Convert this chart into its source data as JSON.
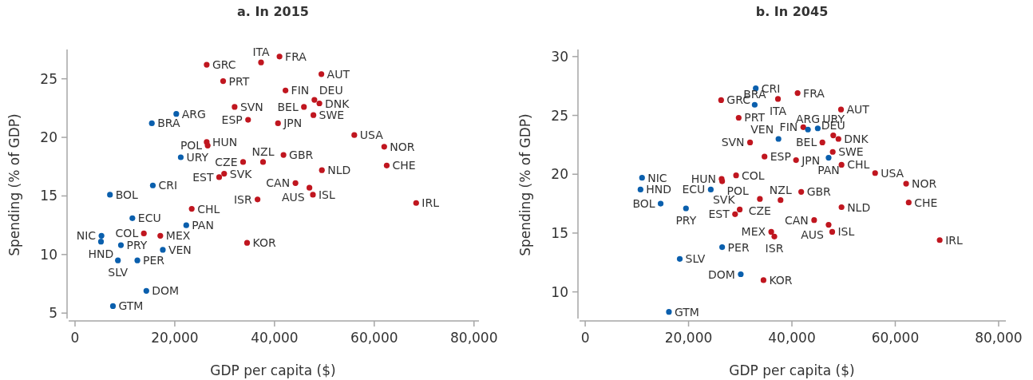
{
  "chart_data": [
    {
      "type": "scatter",
      "title": "a. In 2015",
      "xlabel": "GDP per capita ($)",
      "ylabel": "Spending (% of GDP)",
      "xlim": [
        -1600,
        81000
      ],
      "ylim": [
        4.4,
        27.5
      ],
      "xticks": [
        0,
        {
          "value": 20000,
          "label": "20,000"
        },
        {
          "value": 40000,
          "label": "40,000"
        },
        {
          "value": 60000,
          "label": "60,000"
        },
        {
          "value": 80000,
          "label": "80,000"
        }
      ],
      "yticks": [
        5,
        10,
        15,
        20,
        25
      ],
      "grid": false,
      "marker": "circle",
      "series": [
        {
          "color": "#c0161f",
          "x": [
            26400,
            29700,
            37300,
            41000,
            42200,
            32000,
            34700,
            40700,
            45900,
            48000,
            49000,
            47800,
            49400,
            56000,
            62000,
            62500,
            68400,
            49500,
            44200,
            47000,
            47700,
            36600,
            34500,
            41800,
            37700,
            33700,
            26400,
            26600,
            29900,
            28900,
            23400,
            17100,
            13800
          ],
          "values": [
            26.2,
            24.8,
            26.4,
            26.9,
            24.0,
            22.6,
            21.5,
            21.2,
            22.6,
            23.2,
            22.9,
            21.9,
            25.4,
            20.2,
            19.2,
            17.6,
            14.4,
            17.2,
            16.1,
            15.7,
            15.1,
            14.7,
            11.0,
            18.5,
            17.9,
            17.9,
            19.6,
            19.3,
            16.9,
            16.6,
            13.9,
            11.6,
            11.8
          ]
        },
        {
          "color": "#0a5fad",
          "x": [
            20300,
            15400,
            21200,
            15600,
            7000,
            11500,
            22300,
            5300,
            5200,
            9200,
            17600,
            8600,
            12500,
            14300,
            7600
          ],
          "values": [
            22.0,
            21.2,
            18.3,
            15.9,
            15.1,
            13.1,
            12.5,
            11.6,
            11.1,
            10.8,
            10.4,
            9.5,
            9.5,
            6.9,
            5.6
          ]
        }
      ],
      "annotations": [
        {
          "text": "GRC",
          "x": 26400,
          "y": 26.2
        },
        {
          "text": "PRT",
          "x": 29700,
          "y": 24.8
        },
        {
          "text": "ITA",
          "x": 37300,
          "y": 26.4
        },
        {
          "text": "FRA",
          "x": 41000,
          "y": 26.9
        },
        {
          "text": "FIN",
          "x": 42200,
          "y": 24.0
        },
        {
          "text": "SVN",
          "x": 32000,
          "y": 22.6
        },
        {
          "text": "ESP",
          "x": 34700,
          "y": 21.5
        },
        {
          "text": "JPN",
          "x": 40700,
          "y": 21.2
        },
        {
          "text": "BEL",
          "x": 45900,
          "y": 22.6
        },
        {
          "text": "DEU",
          "x": 48000,
          "y": 23.2
        },
        {
          "text": "DNK",
          "x": 49000,
          "y": 22.9
        },
        {
          "text": "SWE",
          "x": 47800,
          "y": 21.9
        },
        {
          "text": "AUT",
          "x": 49400,
          "y": 25.4
        },
        {
          "text": "USA",
          "x": 56000,
          "y": 20.2
        },
        {
          "text": "NOR",
          "x": 62000,
          "y": 19.2
        },
        {
          "text": "CHE",
          "x": 62500,
          "y": 17.6
        },
        {
          "text": "IRL",
          "x": 68400,
          "y": 14.4
        },
        {
          "text": "NLD",
          "x": 49500,
          "y": 17.2
        },
        {
          "text": "CAN",
          "x": 44200,
          "y": 16.1
        },
        {
          "text": "AUS",
          "x": 47000,
          "y": 15.7
        },
        {
          "text": "ISL",
          "x": 47700,
          "y": 15.1
        },
        {
          "text": "ISR",
          "x": 36600,
          "y": 14.7
        },
        {
          "text": "KOR",
          "x": 34500,
          "y": 11.0
        },
        {
          "text": "GBR",
          "x": 41800,
          "y": 18.5
        },
        {
          "text": "NZL",
          "x": 37700,
          "y": 17.9
        },
        {
          "text": "CZE",
          "x": 33700,
          "y": 17.9
        },
        {
          "text": "HUN",
          "x": 26400,
          "y": 19.6
        },
        {
          "text": "POL",
          "x": 26600,
          "y": 19.3
        },
        {
          "text": "SVK",
          "x": 29900,
          "y": 16.9
        },
        {
          "text": "EST",
          "x": 28900,
          "y": 16.6
        },
        {
          "text": "CHL",
          "x": 23400,
          "y": 13.9
        },
        {
          "text": "MEX",
          "x": 17100,
          "y": 11.6
        },
        {
          "text": "COL",
          "x": 13800,
          "y": 11.8
        },
        {
          "text": "ARG",
          "x": 20300,
          "y": 22.0
        },
        {
          "text": "BRA",
          "x": 15400,
          "y": 21.2
        },
        {
          "text": "URY",
          "x": 21200,
          "y": 18.3
        },
        {
          "text": "CRI",
          "x": 15600,
          "y": 15.9
        },
        {
          "text": "BOL",
          "x": 7000,
          "y": 15.1
        },
        {
          "text": "ECU",
          "x": 11500,
          "y": 13.1
        },
        {
          "text": "PAN",
          "x": 22300,
          "y": 12.5
        },
        {
          "text": "NIC",
          "x": 5300,
          "y": 11.6
        },
        {
          "text": "HND",
          "x": 5200,
          "y": 11.1
        },
        {
          "text": "PRY",
          "x": 9200,
          "y": 10.8
        },
        {
          "text": "VEN",
          "x": 17600,
          "y": 10.4
        },
        {
          "text": "SLV",
          "x": 8600,
          "y": 9.5
        },
        {
          "text": "PER",
          "x": 12500,
          "y": 9.5
        },
        {
          "text": "DOM",
          "x": 14300,
          "y": 6.9
        },
        {
          "text": "GTM",
          "x": 7600,
          "y": 5.6
        }
      ]
    },
    {
      "type": "scatter",
      "title": "b. In 2045",
      "xlabel": "GDP per capita ($)",
      "ylabel": "Spending (% of GDP)",
      "xlim": [
        -1400,
        81400
      ],
      "ylim": [
        7.6,
        30.6
      ],
      "xticks": [
        0,
        {
          "value": 20000,
          "label": "20,000"
        },
        {
          "value": 40000,
          "label": "40,000"
        },
        {
          "value": 60000,
          "label": "60,000"
        },
        {
          "value": 80000,
          "label": "80,000"
        }
      ],
      "yticks": [
        10,
        15,
        20,
        25,
        30
      ],
      "grid": false,
      "marker": "circle",
      "series": [
        {
          "color": "#c0161f",
          "x": [
            26300,
            37300,
            41100,
            29700,
            42200,
            49500,
            48000,
            49000,
            45900,
            47900,
            49600,
            56100,
            62100,
            62600,
            68600,
            49600,
            44300,
            47100,
            47800,
            41800,
            37800,
            36000,
            36600,
            34500,
            26400,
            26500,
            29200,
            33800,
            29900,
            29000,
            31900,
            34700,
            40800
          ],
          "values": [
            26.3,
            26.4,
            26.9,
            24.8,
            24.0,
            25.5,
            23.3,
            23.0,
            22.7,
            21.9,
            20.8,
            20.1,
            19.2,
            17.6,
            14.4,
            17.2,
            16.1,
            15.7,
            15.1,
            18.5,
            17.8,
            15.1,
            14.7,
            11.0,
            19.6,
            19.4,
            19.9,
            17.9,
            17.0,
            16.6,
            22.7,
            21.5,
            21.2
          ]
        },
        {
          "color": "#0a5fad",
          "x": [
            33000,
            32800,
            37400,
            43100,
            45000,
            47100,
            30100,
            26500,
            18300,
            16200,
            11000,
            10700,
            14600,
            19500,
            24300
          ],
          "values": [
            27.3,
            25.9,
            23.0,
            23.8,
            23.9,
            21.4,
            11.5,
            13.8,
            12.8,
            8.3,
            19.7,
            18.7,
            17.5,
            17.1,
            18.7
          ]
        }
      ],
      "annotations": [
        {
          "text": "GRC",
          "x": 26300,
          "y": 26.3
        },
        {
          "text": "ITA",
          "x": 37300,
          "y": 26.4
        },
        {
          "text": "FRA",
          "x": 41100,
          "y": 26.9
        },
        {
          "text": "PRT",
          "x": 29700,
          "y": 24.8
        },
        {
          "text": "FIN",
          "x": 42200,
          "y": 24.0
        },
        {
          "text": "AUT",
          "x": 49500,
          "y": 25.5
        },
        {
          "text": "DEU",
          "x": 48000,
          "y": 23.3
        },
        {
          "text": "DNK",
          "x": 49000,
          "y": 23.0
        },
        {
          "text": "BEL",
          "x": 45900,
          "y": 22.7
        },
        {
          "text": "SWE",
          "x": 47900,
          "y": 21.9
        },
        {
          "text": "CHL",
          "x": 49600,
          "y": 20.8
        },
        {
          "text": "USA",
          "x": 56100,
          "y": 20.1
        },
        {
          "text": "NOR",
          "x": 62100,
          "y": 19.2
        },
        {
          "text": "CHE",
          "x": 62600,
          "y": 17.6
        },
        {
          "text": "IRL",
          "x": 68600,
          "y": 14.4
        },
        {
          "text": "NLD",
          "x": 49600,
          "y": 17.2
        },
        {
          "text": "CAN",
          "x": 44300,
          "y": 16.1
        },
        {
          "text": "AUS",
          "x": 47100,
          "y": 15.7
        },
        {
          "text": "ISL",
          "x": 47800,
          "y": 15.1
        },
        {
          "text": "GBR",
          "x": 41800,
          "y": 18.5
        },
        {
          "text": "NZL",
          "x": 37800,
          "y": 17.8
        },
        {
          "text": "MEX",
          "x": 36000,
          "y": 15.1
        },
        {
          "text": "ISR",
          "x": 36600,
          "y": 14.7
        },
        {
          "text": "KOR",
          "x": 34500,
          "y": 11.0
        },
        {
          "text": "HUN",
          "x": 26400,
          "y": 19.6
        },
        {
          "text": "POL",
          "x": 26500,
          "y": 19.4
        },
        {
          "text": "COL",
          "x": 29200,
          "y": 19.9
        },
        {
          "text": "CZE",
          "x": 33800,
          "y": 17.9
        },
        {
          "text": "SVK",
          "x": 29900,
          "y": 17.0
        },
        {
          "text": "EST",
          "x": 29000,
          "y": 16.6
        },
        {
          "text": "SVN",
          "x": 31900,
          "y": 22.7
        },
        {
          "text": "ESP",
          "x": 34700,
          "y": 21.5
        },
        {
          "text": "JPN",
          "x": 40800,
          "y": 21.2
        },
        {
          "text": "CRI",
          "x": 33000,
          "y": 27.3
        },
        {
          "text": "BRA",
          "x": 32800,
          "y": 25.9
        },
        {
          "text": "VEN",
          "x": 37400,
          "y": 23.0
        },
        {
          "text": "ARG",
          "x": 43100,
          "y": 23.8
        },
        {
          "text": "URY",
          "x": 45000,
          "y": 23.9
        },
        {
          "text": "PAN",
          "x": 47100,
          "y": 21.4
        },
        {
          "text": "DOM",
          "x": 30100,
          "y": 11.5
        },
        {
          "text": "PER",
          "x": 26500,
          "y": 13.8
        },
        {
          "text": "SLV",
          "x": 18300,
          "y": 12.8
        },
        {
          "text": "GTM",
          "x": 16200,
          "y": 8.3
        },
        {
          "text": "NIC",
          "x": 11000,
          "y": 19.7
        },
        {
          "text": "HND",
          "x": 10700,
          "y": 18.7
        },
        {
          "text": "BOL",
          "x": 14600,
          "y": 17.5
        },
        {
          "text": "PRY",
          "x": 19500,
          "y": 17.1
        },
        {
          "text": "ECU",
          "x": 24300,
          "y": 18.7
        }
      ]
    }
  ]
}
